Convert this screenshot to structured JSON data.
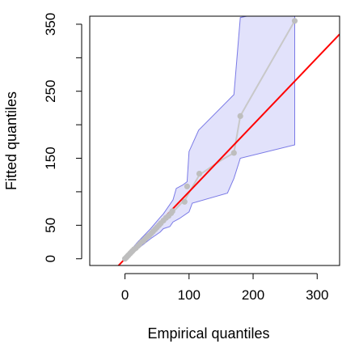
{
  "chart_data": {
    "type": "scatter",
    "title": "",
    "xlabel": "Empirical quantiles",
    "ylabel": "Fitted quantiles",
    "xlim": [
      -55,
      335
    ],
    "ylim": [
      -10,
      362
    ],
    "x_ticks": [
      0,
      100,
      200,
      300
    ],
    "y_ticks": [
      0,
      50,
      100,
      150,
      200,
      250,
      300,
      350
    ],
    "y_tick_labels_shown": [
      "0",
      "50",
      "150",
      "250",
      "350"
    ],
    "grid": false,
    "legend": "none",
    "colors": {
      "points": "#bebebe",
      "median_line": "#c8c8c8",
      "reference_line": "#ff0000",
      "band_fill": "#e2e2fb",
      "band_edge": "#7a7ae6"
    },
    "series": [
      {
        "kind": "points",
        "x": [
          0,
          2,
          4,
          6,
          8,
          10,
          12,
          14,
          17,
          20,
          23,
          26,
          29,
          32,
          35,
          38,
          41,
          44,
          47,
          50,
          53,
          56,
          60,
          64,
          68,
          72,
          74,
          93,
          97,
          116,
          170,
          180,
          265
        ],
        "y": [
          0,
          2,
          4,
          6,
          8,
          10,
          12,
          14,
          16,
          19,
          22,
          25,
          27,
          30,
          33,
          35,
          38,
          41,
          44,
          47,
          50,
          53,
          57,
          61,
          64,
          68,
          71,
          85,
          108,
          127,
          158,
          213,
          355
        ]
      },
      {
        "kind": "median_line",
        "x": [
          0,
          20,
          40,
          60,
          75,
          95,
          116,
          150,
          170,
          180,
          190,
          265
        ],
        "y": [
          0,
          20,
          38,
          57,
          70,
          90,
          125,
          147,
          158,
          213,
          230,
          355
        ]
      },
      {
        "kind": "reference_line",
        "intercept": 0,
        "slope": 1
      },
      {
        "kind": "confidence_band",
        "upper": {
          "x": [
            0,
            20,
            40,
            55,
            60,
            75,
            80,
            90,
            97,
            100,
            115,
            170,
            180,
            190,
            265
          ],
          "y": [
            3,
            25,
            45,
            62,
            67,
            88,
            105,
            110,
            115,
            160,
            192,
            245,
            360,
            362,
            362
          ]
        },
        "lower": {
          "x": [
            0,
            20,
            40,
            55,
            60,
            70,
            75,
            85,
            100,
            105,
            160,
            170,
            180,
            265,
            265
          ],
          "y": [
            -3,
            15,
            30,
            40,
            45,
            48,
            55,
            60,
            70,
            83,
            98,
            120,
            150,
            170,
            205
          ]
        }
      }
    ]
  }
}
